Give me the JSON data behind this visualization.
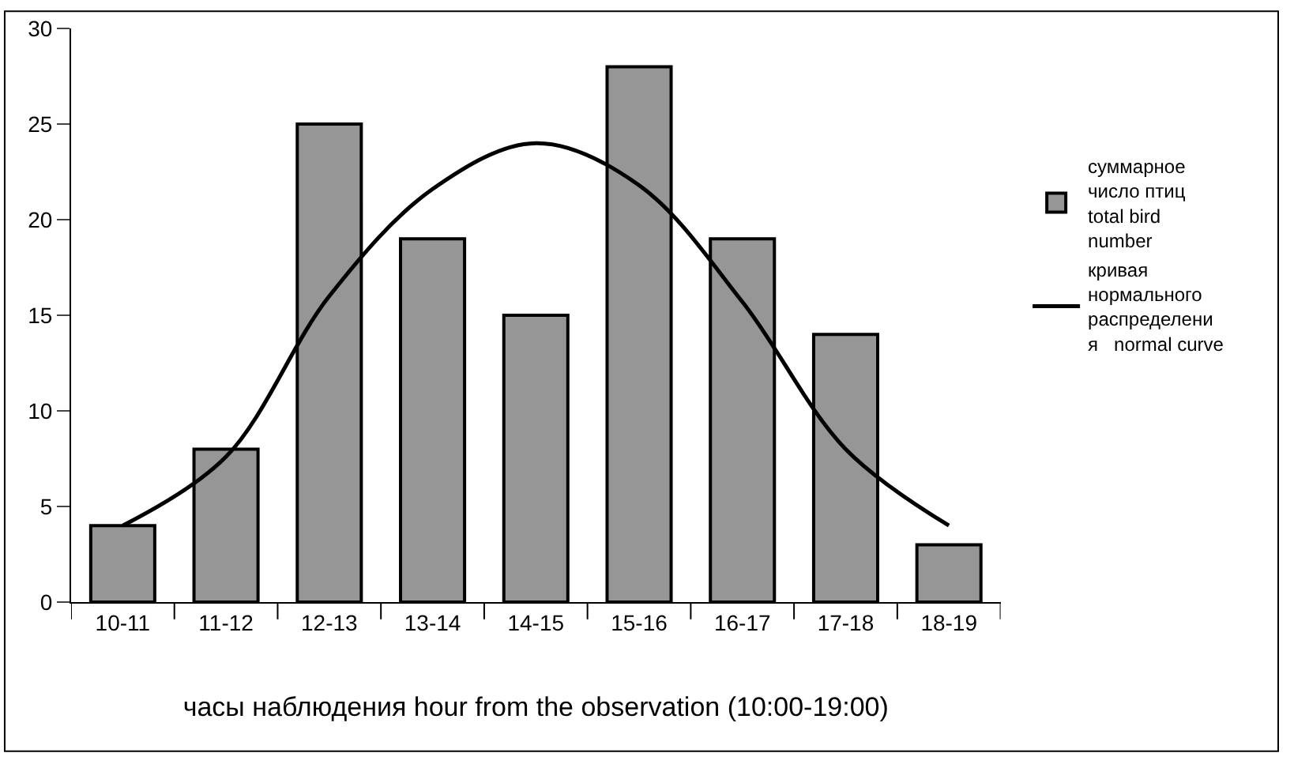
{
  "chart_data": {
    "type": "bar",
    "xlabel": "часы наблюдения hour from the observation (10:00-19:00)",
    "categories": [
      "10-11",
      "11-12",
      "12-13",
      "13-14",
      "14-15",
      "15-16",
      "16-17",
      "17-18",
      "18-19"
    ],
    "series": [
      {
        "name": "суммарное\nчисло птиц\ntotal bird\nnumber",
        "color": "#969696",
        "values": [
          4,
          8,
          25,
          19,
          15,
          28,
          19,
          14,
          3
        ]
      },
      {
        "name": "кривая\nнормального\nраспределени\nя   normal curve",
        "type": "line",
        "color": "#000000",
        "values": [
          4,
          7.6,
          16,
          21.6,
          24,
          21.8,
          15.7,
          8,
          4
        ]
      }
    ],
    "ylim": [
      0,
      30
    ],
    "yticks": [
      0,
      5,
      10,
      15,
      20,
      25,
      30
    ],
    "grid": false,
    "legend": "right",
    "marker": "none",
    "line_style": "solid"
  }
}
